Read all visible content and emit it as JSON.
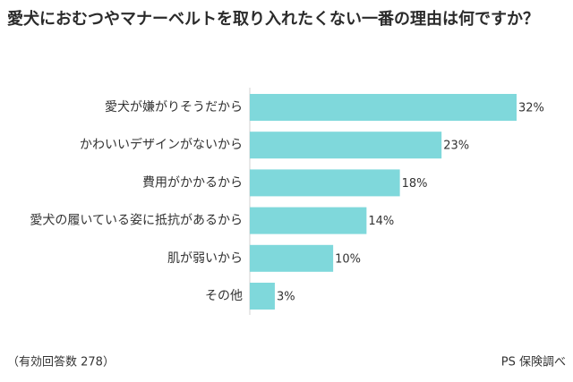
{
  "chart_data": {
    "type": "bar",
    "orientation": "horizontal",
    "title": "愛犬におむつやマナーベルトを取り入れたくない一番の理由は何ですか？",
    "categories": [
      "愛犬が嫌がりそうだから",
      "かわいいデザインがないから",
      "費用がかかるから",
      "愛犬の履いている姿に抵抗があるから",
      "肌が弱いから",
      "その他"
    ],
    "values": [
      32,
      23,
      18,
      14,
      10,
      3
    ],
    "value_labels": [
      "32%",
      "23%",
      "18%",
      "14%",
      "10%",
      "3%"
    ],
    "color": "#7fd8db",
    "note": "（有効回答数 278）",
    "source": "PS 保険調べ"
  }
}
